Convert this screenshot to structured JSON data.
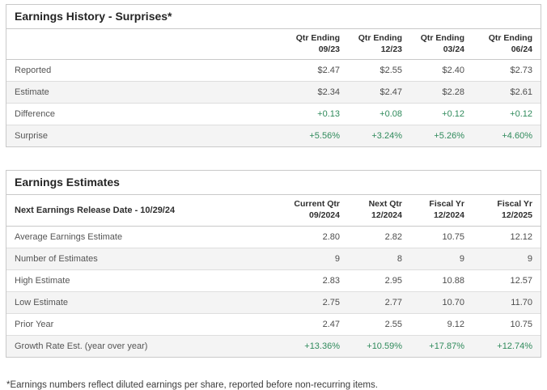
{
  "colors": {
    "positive_green": "#2f8a5b",
    "border": "#c9c9c9",
    "row_alt_bg": "#f4f4f4",
    "title_text": "#252525",
    "body_text": "#555555"
  },
  "earnings_history": {
    "title": "Earnings History - Surprises*",
    "columns": [
      {
        "line1": "Qtr Ending",
        "line2": "09/23"
      },
      {
        "line1": "Qtr Ending",
        "line2": "12/23"
      },
      {
        "line1": "Qtr Ending",
        "line2": "03/24"
      },
      {
        "line1": "Qtr Ending",
        "line2": "06/24"
      }
    ],
    "rows": [
      {
        "label": "Reported",
        "values": [
          "$2.47",
          "$2.55",
          "$2.40",
          "$2.73"
        ],
        "positive": false
      },
      {
        "label": "Estimate",
        "values": [
          "$2.34",
          "$2.47",
          "$2.28",
          "$2.61"
        ],
        "positive": false
      },
      {
        "label": "Difference",
        "values": [
          "+0.13",
          "+0.08",
          "+0.12",
          "+0.12"
        ],
        "positive": true
      },
      {
        "label": "Surprise",
        "values": [
          "+5.56%",
          "+3.24%",
          "+5.26%",
          "+4.60%"
        ],
        "positive": true
      }
    ]
  },
  "earnings_estimates": {
    "title": "Earnings Estimates",
    "release_date_label": "Next Earnings Release Date - 10/29/24",
    "columns": [
      {
        "line1": "Current Qtr",
        "line2": "09/2024"
      },
      {
        "line1": "Next Qtr",
        "line2": "12/2024"
      },
      {
        "line1": "Fiscal Yr",
        "line2": "12/2024"
      },
      {
        "line1": "Fiscal Yr",
        "line2": "12/2025"
      }
    ],
    "rows": [
      {
        "label": "Average Earnings Estimate",
        "values": [
          "2.80",
          "2.82",
          "10.75",
          "12.12"
        ],
        "positive": false
      },
      {
        "label": "Number of Estimates",
        "values": [
          "9",
          "8",
          "9",
          "9"
        ],
        "positive": false
      },
      {
        "label": "High Estimate",
        "values": [
          "2.83",
          "2.95",
          "10.88",
          "12.57"
        ],
        "positive": false
      },
      {
        "label": "Low Estimate",
        "values": [
          "2.75",
          "2.77",
          "10.70",
          "11.70"
        ],
        "positive": false
      },
      {
        "label": "Prior Year",
        "values": [
          "2.47",
          "2.55",
          "9.12",
          "10.75"
        ],
        "positive": false
      },
      {
        "label": "Growth Rate Est. (year over year)",
        "values": [
          "+13.36%",
          "+10.59%",
          "+17.87%",
          "+12.74%"
        ],
        "positive": true
      }
    ]
  },
  "footnote": "*Earnings numbers reflect diluted earnings per share, reported before non-recurring items."
}
